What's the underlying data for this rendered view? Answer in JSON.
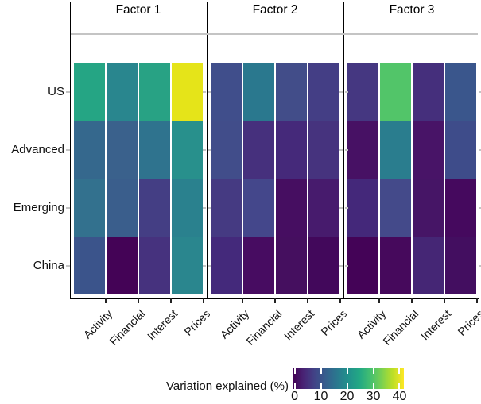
{
  "figure": {
    "background": "#ffffff",
    "panel_border_color": "#000000",
    "strip_separator_color": "#c4c4c4",
    "axis_tick_color": "#222222",
    "minor_tick_color": "#c4c4c4"
  },
  "chart_data": {
    "type": "heatmap",
    "title": "",
    "facets": [
      "Factor 1",
      "Factor 2",
      "Factor 3"
    ],
    "y_categories": [
      "US",
      "Advanced",
      "Emerging",
      "China"
    ],
    "x_categories": [
      "Activity",
      "Financial",
      "Interest",
      "Prices"
    ],
    "legend": {
      "title": "Variation explained (%)",
      "tick_labels": [
        "0",
        "10",
        "20",
        "30",
        "40"
      ],
      "min": 0,
      "max": 40,
      "position": "bottom-right"
    },
    "grid": "off",
    "palette_viridis": [
      "#440154",
      "#482475",
      "#414487",
      "#355f8d",
      "#2a788e",
      "#21918c",
      "#22a884",
      "#44bf70",
      "#7ad151",
      "#bddf26",
      "#fde725"
    ],
    "series": [
      {
        "facet": "Factor 1",
        "values": [
          [
            24,
            18,
            23,
            39
          ],
          [
            13,
            12,
            15,
            19
          ],
          [
            15,
            12,
            8,
            17
          ],
          [
            10,
            1,
            5,
            18
          ]
        ],
        "colors": [
          [
            "#25a584",
            "#29868e",
            "#28a284",
            "#e5e419"
          ],
          [
            "#35688d",
            "#3a618c",
            "#2f738e",
            "#28908c"
          ],
          [
            "#33718e",
            "#3a5e8c",
            "#443e84",
            "#2a818e"
          ],
          [
            "#3b548b",
            "#440356",
            "#46327e",
            "#2a868e"
          ]
        ]
      },
      {
        "facet": "Factor 2",
        "values": [
          [
            9,
            16,
            9,
            7
          ],
          [
            9,
            5,
            4,
            5
          ],
          [
            7,
            9,
            2,
            3
          ],
          [
            4,
            2,
            2,
            1
          ]
        ],
        "colors": [
          [
            "#404e8b",
            "#2a788e",
            "#424d89",
            "#443e85"
          ],
          [
            "#414d8a",
            "#46307d",
            "#45297a",
            "#46337e"
          ],
          [
            "#453a82",
            "#44478b",
            "#460e61",
            "#471b6d"
          ],
          [
            "#44297b",
            "#470c61",
            "#450f5f",
            "#42085b"
          ]
        ]
      },
      {
        "facet": "Factor 3",
        "values": [
          [
            7,
            29,
            6,
            11
          ],
          [
            2,
            17,
            2,
            9
          ],
          [
            4,
            9,
            3,
            1
          ],
          [
            1,
            1,
            4,
            2
          ]
        ],
        "colors": [
          [
            "#453781",
            "#52c569",
            "#452f7c",
            "#3a568c"
          ],
          [
            "#471164",
            "#2a7d8e",
            "#481467",
            "#3e4c8a"
          ],
          [
            "#44287a",
            "#444a8a",
            "#461566",
            "#45095e"
          ],
          [
            "#440357",
            "#46095c",
            "#452675",
            "#430e60"
          ]
        ]
      }
    ]
  }
}
